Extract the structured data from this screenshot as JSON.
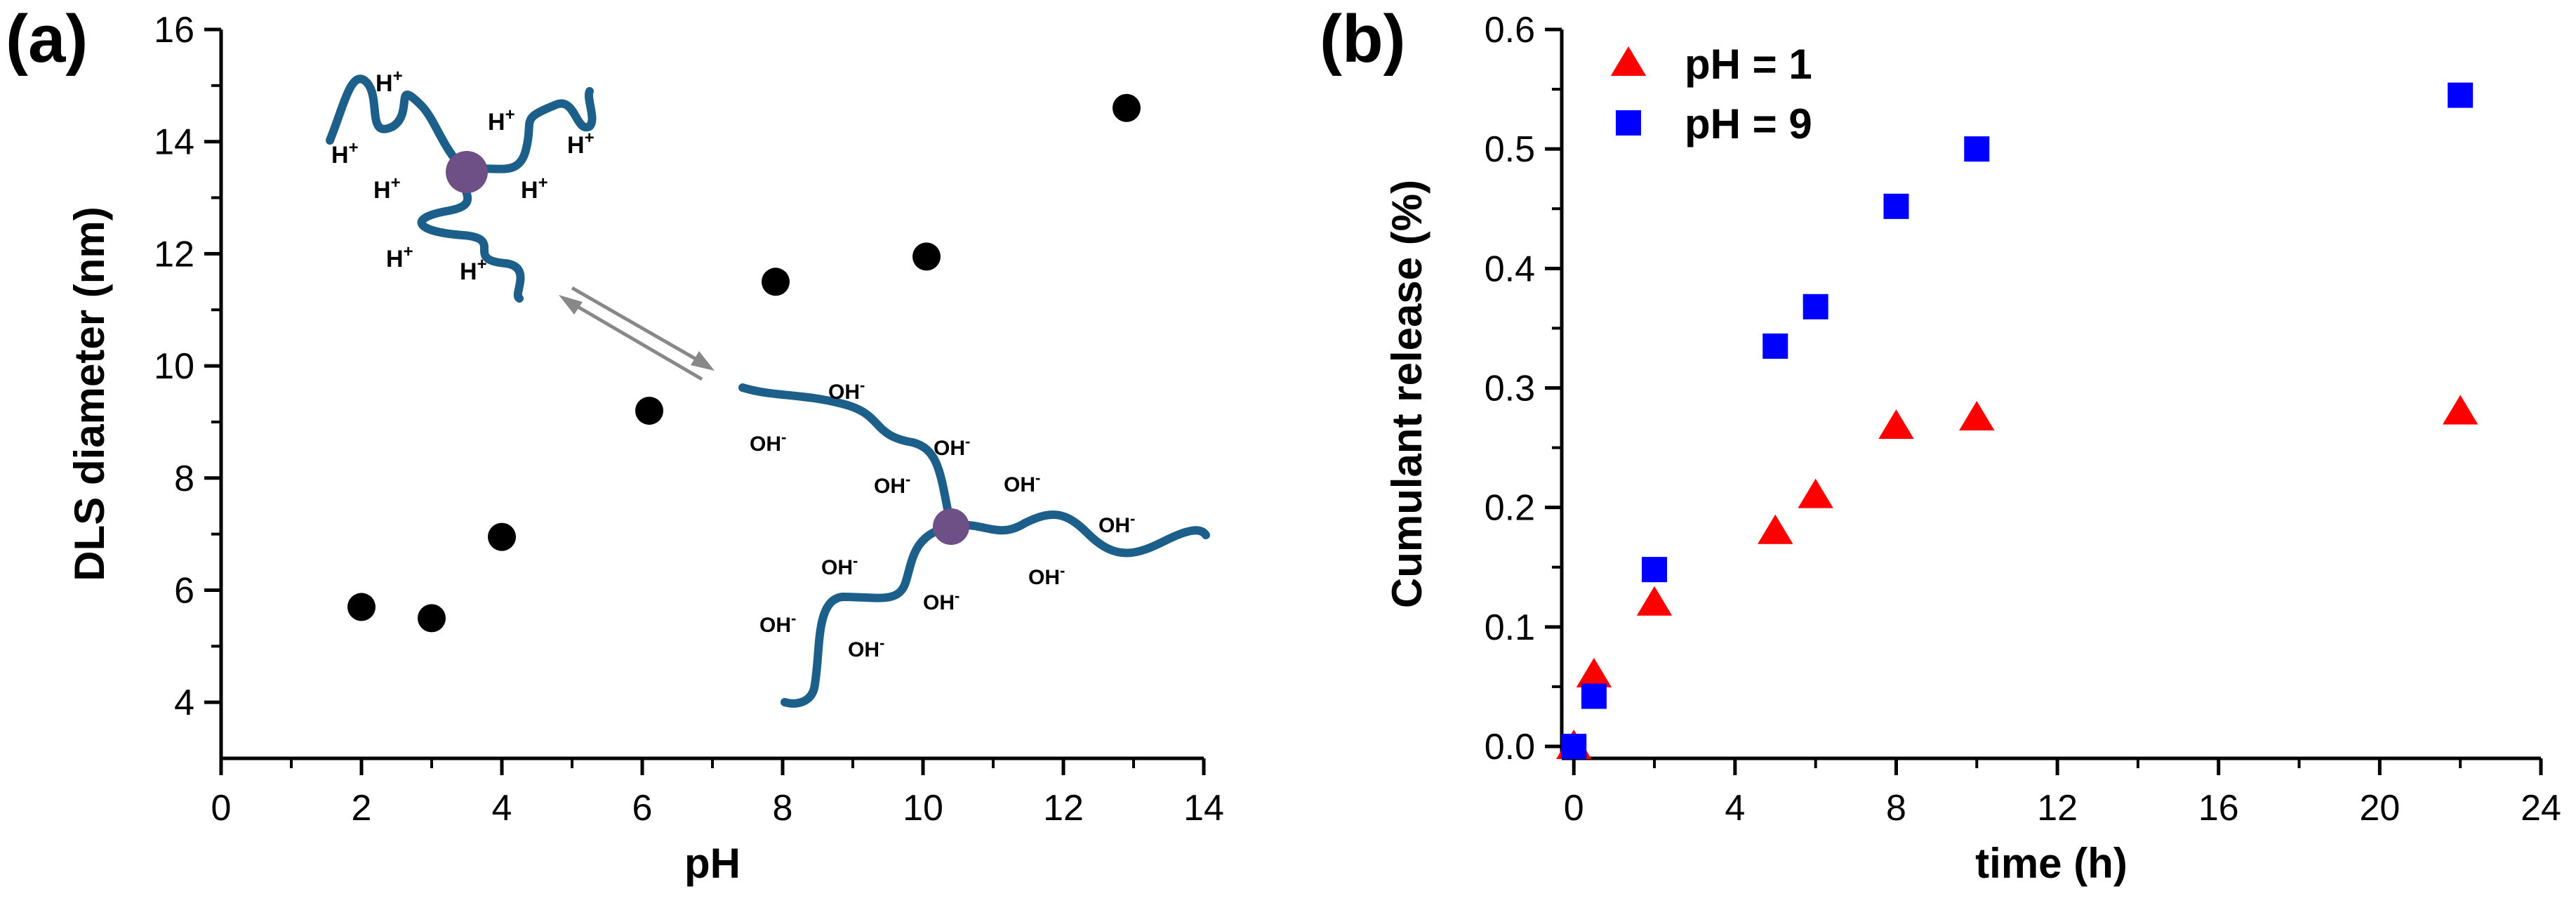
{
  "panel_a": {
    "label": "(a)",
    "ion_labels": {
      "acid": "H",
      "acid_sup": "+",
      "base": "OH",
      "base_sup": "-"
    }
  },
  "panel_b": {
    "label": "(b)"
  },
  "colors": {
    "points_a": "#000000",
    "series_ph1": "#ff0000",
    "series_ph9": "#0000ff",
    "polymer_chain": "#1b5f8a",
    "core": "#6e4f86",
    "arrow": "#888888"
  },
  "chart_data": [
    {
      "type": "scatter",
      "xlabel": "pH",
      "ylabel": "DLS diameter (nm)",
      "xlim": [
        0,
        14
      ],
      "ylim": [
        3,
        16
      ],
      "xticks": [
        0,
        2,
        4,
        6,
        8,
        10,
        12,
        14
      ],
      "yticks": [
        4,
        6,
        8,
        10,
        12,
        14,
        16
      ],
      "series": [
        {
          "x": [
            2.0,
            3.0,
            4.0,
            6.1,
            7.9,
            10.05,
            12.9
          ],
          "y": [
            5.7,
            5.5,
            6.95,
            9.2,
            11.5,
            11.95,
            14.6
          ]
        }
      ]
    },
    {
      "type": "scatter",
      "xlabel": "time (h)",
      "ylabel": "Cumulant release (%)",
      "xlim": [
        -0.3,
        24
      ],
      "ylim": [
        -0.01,
        0.6
      ],
      "xticks": [
        0,
        4,
        8,
        12,
        16,
        20,
        24
      ],
      "yticks": [
        "0.0",
        "0.1",
        "0.2",
        "0.3",
        "0.4",
        "0.5",
        "0.6"
      ],
      "legend": "top-left",
      "series": [
        {
          "name": "pH = 1",
          "marker": "triangle",
          "x": [
            0,
            0.5,
            2,
            5,
            6,
            8,
            10,
            22
          ],
          "y": [
            0.0,
            0.06,
            0.12,
            0.18,
            0.21,
            0.268,
            0.275,
            0.28
          ]
        },
        {
          "name": "pH = 9",
          "marker": "square",
          "x": [
            0,
            0.5,
            2,
            5,
            6,
            8,
            10,
            22
          ],
          "y": [
            0.0,
            0.042,
            0.148,
            0.335,
            0.368,
            0.452,
            0.5,
            0.545
          ]
        }
      ]
    }
  ]
}
